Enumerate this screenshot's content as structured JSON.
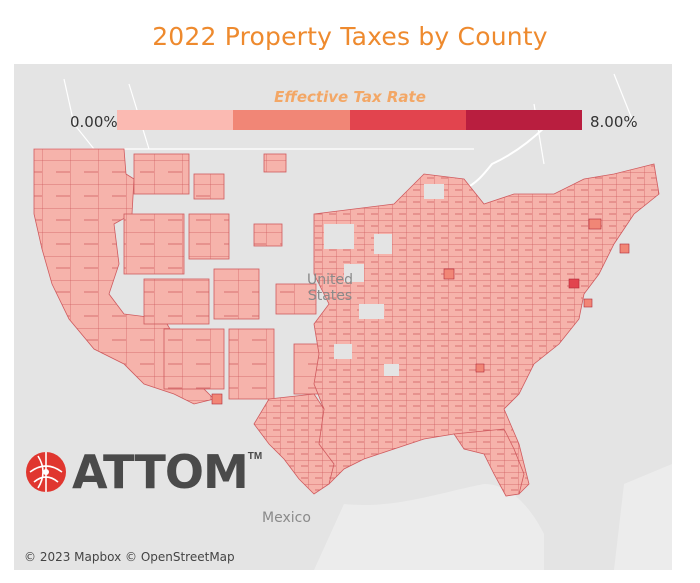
{
  "title": "2022 Property Taxes by County",
  "legend": {
    "title": "Effective Tax Rate",
    "min_label": "0.00%",
    "max_label": "8.00%",
    "colors": [
      "#fbbab2",
      "#f18676",
      "#e2444e",
      "#b91e3f"
    ]
  },
  "map": {
    "country_label": "United States",
    "neighbor_label": "Mexico",
    "land_color": "#e4e4e4",
    "county_fill": "#f6b3ab",
    "county_stroke": "#d15b5f",
    "water_color": "#ffffff"
  },
  "logo": {
    "text": "ATTOM",
    "trademark": "TM",
    "accent_color": "#e0362f"
  },
  "attribution": "© 2023 Mapbox © OpenStreetMap"
}
